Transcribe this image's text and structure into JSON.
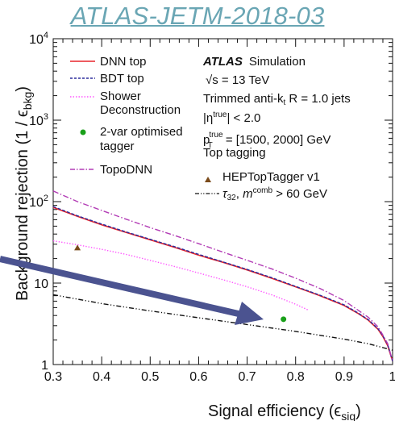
{
  "header": {
    "link_text": "ATLAS-JETM-2018-03"
  },
  "chart_data": {
    "type": "line",
    "xlabel": "Signal efficiency (ϵ",
    "xlabel_sub": "sig",
    "xlabel_close": ")",
    "ylabel": "Background rejection (1 / ϵ",
    "ylabel_sub": "bkg",
    "ylabel_close": ")",
    "xlim": [
      0.3,
      1.0
    ],
    "ylim": [
      1,
      10000
    ],
    "yscale": "log",
    "x_ticks": [
      "0.3",
      "0.4",
      "0.5",
      "0.6",
      "0.7",
      "0.8",
      "0.9",
      "1"
    ],
    "y_ticks": [
      {
        "base": "1",
        "exp": ""
      },
      {
        "base": "10",
        "exp": ""
      },
      {
        "base": "10",
        "exp": "2"
      },
      {
        "base": "10",
        "exp": "3"
      },
      {
        "base": "10",
        "exp": "4"
      }
    ],
    "legend_position": "top-left",
    "series": [
      {
        "name": "DNN top",
        "color": "#e8252b",
        "style": "solid",
        "x": [
          0.3,
          0.35,
          0.4,
          0.45,
          0.5,
          0.55,
          0.6,
          0.65,
          0.7,
          0.75,
          0.8,
          0.85,
          0.9,
          0.93,
          0.95,
          0.97,
          0.98,
          0.99,
          1.0
        ],
        "y": [
          85,
          66,
          52,
          42,
          34,
          27.5,
          22,
          18,
          14.5,
          11.5,
          9,
          7,
          5.3,
          4.2,
          3.5,
          2.7,
          2.2,
          1.7,
          1.1
        ]
      },
      {
        "name": "BDT top",
        "color": "#2b2b9b",
        "style": "dashed",
        "x": [
          0.3,
          0.35,
          0.4,
          0.45,
          0.5,
          0.55,
          0.6,
          0.65,
          0.7,
          0.75,
          0.8,
          0.85,
          0.9,
          0.93,
          0.95,
          0.97,
          0.98,
          0.99,
          1.0
        ],
        "y": [
          87,
          67,
          53,
          42.5,
          34.5,
          28,
          22.5,
          18.2,
          14.7,
          11.7,
          9.1,
          7.1,
          5.4,
          4.25,
          3.55,
          2.75,
          2.25,
          1.75,
          1.1
        ]
      },
      {
        "name": "Shower\nDeconstruction",
        "color": "#ff55ff",
        "style": "dotted",
        "x": [
          0.3,
          0.35,
          0.4,
          0.45,
          0.5,
          0.55,
          0.6,
          0.65,
          0.7,
          0.75,
          0.8,
          0.825
        ],
        "y": [
          33,
          29.5,
          26,
          22.5,
          19,
          16,
          13.3,
          11,
          9,
          7.2,
          5.5,
          4.7
        ]
      },
      {
        "name": "TopoDNN",
        "color": "#b23bb5",
        "style": "dashdot",
        "x": [
          0.3,
          0.35,
          0.4,
          0.45,
          0.5,
          0.55,
          0.6,
          0.65,
          0.7,
          0.75,
          0.8,
          0.85,
          0.9,
          0.93,
          0.95,
          0.97,
          0.98,
          0.99,
          1.0
        ],
        "y": [
          135,
          100,
          78,
          61,
          48,
          38.5,
          30.5,
          24,
          19,
          15,
          11.5,
          8.6,
          6.1,
          4.6,
          3.8,
          2.9,
          2.3,
          1.8,
          1.1
        ]
      },
      {
        "name": "τ32, m^comb > 60 GeV",
        "color": "#111111",
        "style": "dashdotdot",
        "x": [
          0.3,
          0.4,
          0.5,
          0.6,
          0.7,
          0.8,
          0.9,
          0.95,
          1.0
        ],
        "y": [
          7.2,
          5.6,
          4.55,
          3.75,
          3.1,
          2.55,
          2.05,
          1.8,
          1.5
        ]
      }
    ],
    "points": [
      {
        "name": "2-var optimised\ntagger",
        "color": "#1aa01a",
        "marker": "circle",
        "x": 0.775,
        "y": 3.6
      },
      {
        "name": "HEPTopTagger v1",
        "color": "#7a4a1a",
        "marker": "triangle",
        "x": 0.35,
        "y": 27
      }
    ],
    "annotations": {
      "atlas": "ATLAS",
      "simulation": "Simulation",
      "sqrt_s": "√s = 13 TeV",
      "jets": "Trimmed anti-k",
      "jets_sub": "t",
      "jets_tail": " R = 1.0 jets",
      "eta": "|η",
      "eta_sup": "true",
      "eta_tail": "| < 2.0",
      "pt": "p",
      "pt_sup": "true",
      "pt_sub": "T",
      "pt_tail": " = [1500, 2000] GeV",
      "tagging": "Top tagging"
    },
    "arrow_color": "#4b5390"
  }
}
